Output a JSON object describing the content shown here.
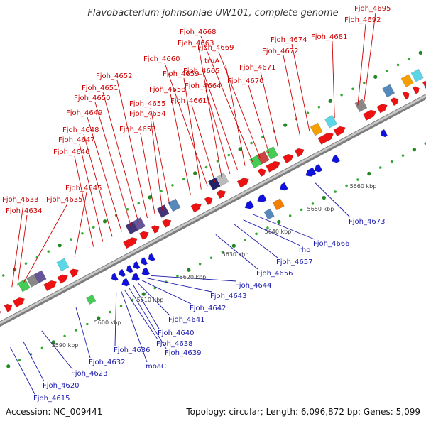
{
  "title": "Flavobacterium johnsoniae UW101, complete genome",
  "accession": "Accession: NC_009441",
  "summary": "Topology: circular; Length: 6,096,872 bp; Genes: 5,099",
  "colors": {
    "forward_gene": "#ee1111",
    "reverse_gene": "#1111dd",
    "forward_label": "#cc0000",
    "reverse_label": "#1a1aaa",
    "backbone": "#9a9a9a",
    "dots": "#33aa33"
  },
  "ticks": [
    {
      "label": "5590 kbp",
      "kb": 5590
    },
    {
      "label": "5600 kbp",
      "kb": 5600
    },
    {
      "label": "5610 kbp",
      "kb": 5610
    },
    {
      "label": "5620 kbp",
      "kb": 5620
    },
    {
      "label": "5630 kbp",
      "kb": 5630
    },
    {
      "label": "5640 kbp",
      "kb": 5640
    },
    {
      "label": "5650 kbp",
      "kb": 5650
    },
    {
      "label": "5660 kbp",
      "kb": 5660
    }
  ],
  "forward_labels": [
    "Fjoh_4633",
    "Fjoh_4634",
    "Fjoh_4635",
    "Fjoh_4645",
    "Fjoh_4646",
    "Fjoh_4647",
    "Fjoh_4648",
    "Fjoh_4649",
    "Fjoh_4650",
    "Fjoh_4651",
    "Fjoh_4652",
    "Fjoh_4653",
    "Fjoh_4654",
    "Fjoh_4655",
    "Fjoh_4658",
    "Fjoh_4659",
    "Fjoh_4660",
    "Fjoh_4661",
    "Fjoh_4663",
    "Fjoh_4664",
    "Fjoh_4665",
    "truA",
    "Fjoh_4668",
    "Fjoh_4669",
    "Fjoh_4670",
    "Fjoh_4671",
    "Fjoh_4672",
    "Fjoh_4674",
    "Fjoh_4681",
    "Fjoh_4692",
    "Fjoh_4695"
  ],
  "reverse_labels": [
    "Fjoh_4615",
    "Fjoh_4620",
    "Fjoh_4623",
    "Fjoh_4632",
    "Fjoh_4636",
    "moaC",
    "Fjoh_4638",
    "Fjoh_4639",
    "Fjoh_4640",
    "Fjoh_4641",
    "Fjoh_4642",
    "Fjoh_4643",
    "Fjoh_4644",
    "Fjoh_4656",
    "Fjoh_4657",
    "rho",
    "Fjoh_4666",
    "Fjoh_4673"
  ]
}
